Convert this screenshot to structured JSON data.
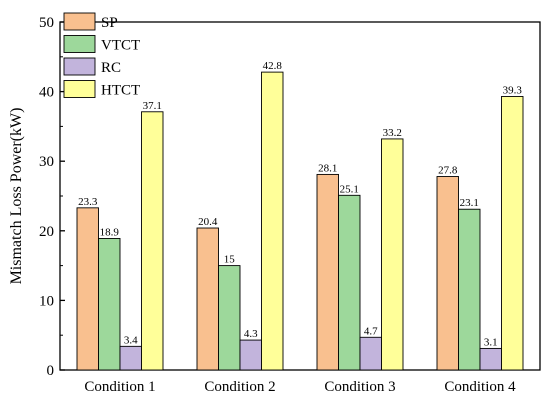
{
  "chart_data": {
    "type": "bar",
    "title": "",
    "xlabel": "",
    "ylabel": "Mismatch Loss Power(kW)",
    "ylim": [
      0,
      50
    ],
    "yticks": [
      0,
      10,
      20,
      30,
      40,
      50
    ],
    "grid": false,
    "legend_position": "top-left",
    "categories": [
      "Condition 1",
      "Condition 2",
      "Condition 3",
      "Condition 4"
    ],
    "series": [
      {
        "name": "SP",
        "color": "#f9c08f",
        "values": [
          23.3,
          20.4,
          28.1,
          27.8
        ],
        "labels": [
          "23.3",
          "20.4",
          "28.1",
          "27.8"
        ]
      },
      {
        "name": "VTCT",
        "color": "#9dd89b",
        "values": [
          18.9,
          15,
          25.1,
          23.1
        ],
        "labels": [
          "18.9",
          "15",
          "25.1",
          "23.1"
        ]
      },
      {
        "name": "RC",
        "color": "#c2b4dc",
        "values": [
          3.4,
          4.3,
          4.7,
          3.1
        ],
        "labels": [
          "3.4",
          "4.3",
          "4.7",
          "3.1"
        ]
      },
      {
        "name": "HTCT",
        "color": "#ffff99",
        "values": [
          37.1,
          42.8,
          33.2,
          39.3
        ],
        "labels": [
          "37.1",
          "42.8",
          "33.2",
          "39.3"
        ]
      }
    ]
  }
}
